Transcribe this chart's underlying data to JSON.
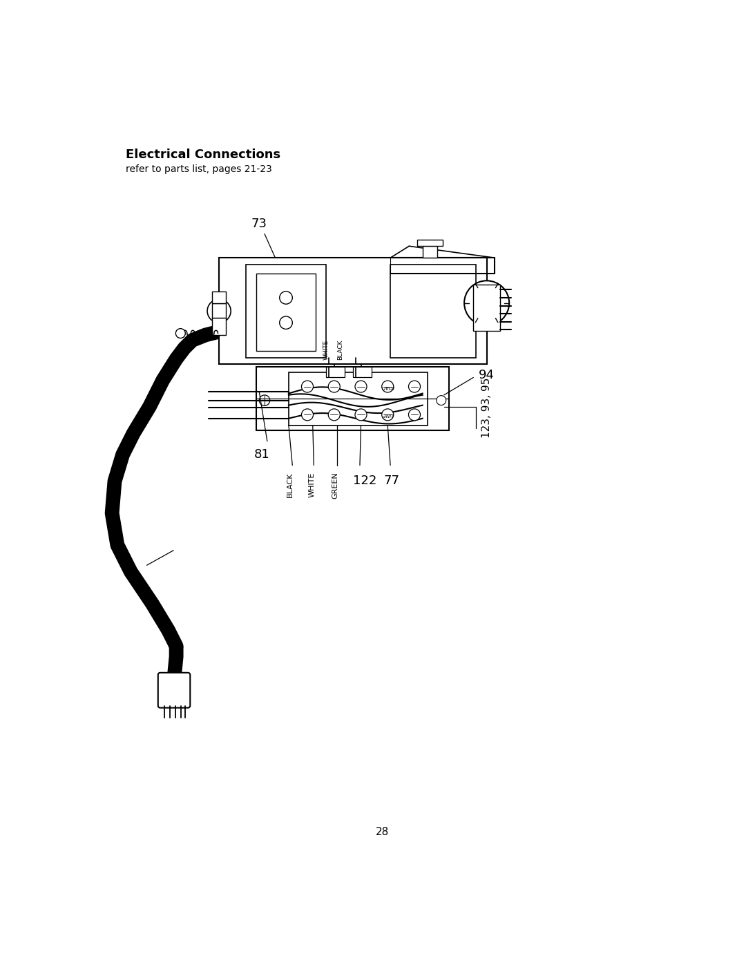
{
  "title": "Electrical Connections",
  "subtitle": "refer to parts list, pages 21-23",
  "page_number": "28",
  "bg_color": "#ffffff",
  "line_color": "#000000",
  "title_fontsize": 13,
  "subtitle_fontsize": 10,
  "page_fontsize": 11,
  "fig_w": 10.8,
  "fig_h": 13.97,
  "dpi": 100
}
